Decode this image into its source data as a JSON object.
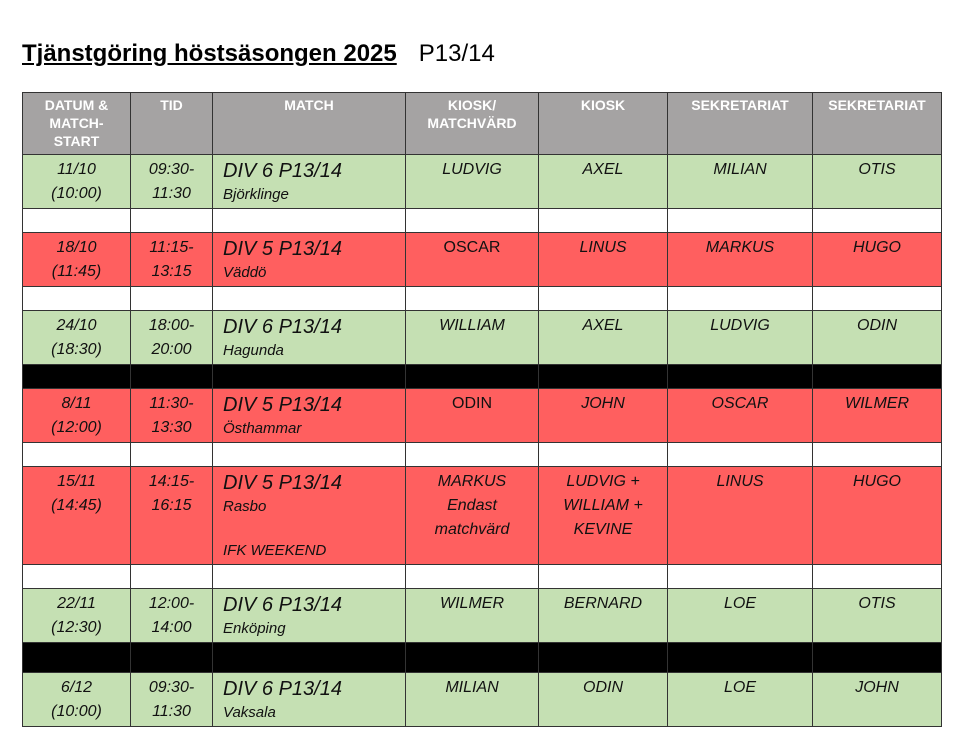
{
  "title": {
    "main": "Tjänstgöring höstsäsongen 2025",
    "sub": "P13/14"
  },
  "headers": [
    "DATUM & MATCH-START",
    "TID",
    "MATCH",
    "KIOSK/ MATCHVÄRD",
    "KIOSK",
    "SEKRETARIAT",
    "SEKRETARIAT"
  ],
  "colors": {
    "header": "#a5a3a3",
    "home_green": "#c5e0b3",
    "away_red": "#ff5f5f",
    "separator": "#000000"
  },
  "rows": [
    {
      "date": "11/10",
      "start": "(10:00)",
      "time1": "09:30-",
      "time2": "11:30",
      "division": "DIV 6 P13/14",
      "opponent": "Björklinge",
      "kiosk_host": "LUDVIG",
      "kiosk": "AXEL",
      "sek1": "MILIAN",
      "sek2": "OTIS"
    },
    {
      "date": "18/10",
      "start": "(11:45)",
      "time1": "11:15-",
      "time2": "13:15",
      "division": "DIV 5 P13/14",
      "opponent": "Väddö",
      "kiosk_host": "OSCAR",
      "kiosk": "LINUS",
      "sek1": "MARKUS",
      "sek2": "HUGO"
    },
    {
      "date": "24/10",
      "start": "(18:30)",
      "time1": "18:00-",
      "time2": "20:00",
      "division": "DIV 6 P13/14",
      "opponent": "Hagunda",
      "kiosk_host": "WILLIAM",
      "kiosk": "AXEL",
      "sek1": "LUDVIG",
      "sek2": "ODIN"
    },
    {
      "date": "8/11",
      "start": "(12:00)",
      "time1": "11:30-",
      "time2": "13:30",
      "division": "DIV 5 P13/14",
      "opponent": "Östhammar",
      "kiosk_host": "ODIN",
      "kiosk": "JOHN",
      "sek1": "OSCAR",
      "sek2": "WILMER"
    },
    {
      "date": "15/11",
      "start": "(14:45)",
      "time1": "14:15-",
      "time2": "16:15",
      "division": "DIV 5 P13/14",
      "opponent": "Rasbo",
      "note": "IFK WEEKEND",
      "kiosk_host": "MARKUS",
      "kiosk_host_note1": "Endast",
      "kiosk_host_note2": "matchvärd",
      "kiosk": "LUDVIG +",
      "kiosk2": "WILLIAM +",
      "kiosk3": "KEVINE",
      "sek1": "LINUS",
      "sek2": "HUGO"
    },
    {
      "date": "22/11",
      "start": "(12:30)",
      "time1": "12:00-",
      "time2": "14:00",
      "division": "DIV 6 P13/14",
      "opponent": "Enköping",
      "kiosk_host": "WILMER",
      "kiosk": "BERNARD",
      "sek1": "LOE",
      "sek2": "OTIS"
    },
    {
      "date": "6/12",
      "start": "(10:00)",
      "time1": "09:30-",
      "time2": "11:30",
      "division": "DIV 6 P13/14",
      "opponent": "Vaksala",
      "kiosk_host": "MILIAN",
      "kiosk": "ODIN",
      "sek1": "LOE",
      "sek2": "JOHN"
    }
  ]
}
